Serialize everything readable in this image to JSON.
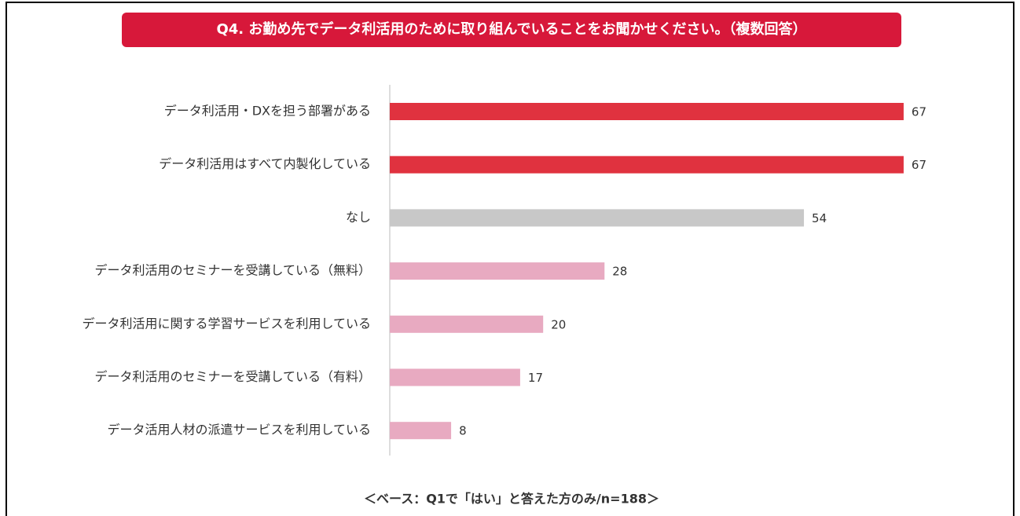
{
  "chart_data": {
    "type": "bar",
    "orientation": "horizontal",
    "title": "Q4. お勤め先でデータ利活用のために取り組んでいることをお聞かせください。（複数回答）",
    "categories": [
      "データ利活用・DXを担う部署がある",
      "データ利活用はすべて内製化している",
      "なし",
      "データ利活用のセミナーを受講している（無料）",
      "データ利活用に関する学習サービスを利用している",
      "データ利活用のセミナーを受講している（有料）",
      "データ活用人材の派遣サービスを利用している"
    ],
    "values": [
      67,
      67,
      54,
      28,
      20,
      17,
      8
    ],
    "colors": [
      "#e0323f",
      "#e0323f",
      "#c8c8c8",
      "#e8aac1",
      "#e8aac1",
      "#e8aac1",
      "#e8aac1"
    ],
    "footnote": "＜ベース：Q1で「はい」と答えた方のみ/n=188＞"
  }
}
